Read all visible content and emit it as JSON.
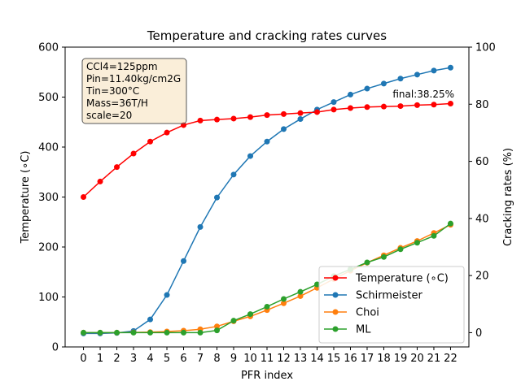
{
  "chart_data": {
    "type": "line",
    "title": "Temperature and cracking rates curves",
    "xlabel": "PFR index",
    "ylabel_left": "Temperature ($^\\circ$C)",
    "ylabel_left_display": "Temperature (∘C)",
    "ylabel_right": "Cracking rates (%)",
    "x": [
      0,
      1,
      2,
      3,
      4,
      5,
      6,
      7,
      8,
      9,
      10,
      11,
      12,
      13,
      14,
      15,
      16,
      17,
      18,
      19,
      20,
      21,
      22
    ],
    "ylim_left": [
      0,
      600
    ],
    "ylim_right": [
      -5,
      100
    ],
    "yticks_left": [
      0,
      100,
      200,
      300,
      400,
      500,
      600
    ],
    "yticks_right": [
      0,
      20,
      40,
      60,
      80,
      100
    ],
    "grid": false,
    "legend_position": "lower-right",
    "series": [
      {
        "name": "Temperature (∘C)",
        "axis": "left",
        "color": "#ff0000",
        "values": [
          300,
          331,
          360,
          387,
          411,
          429,
          444,
          453,
          455,
          457,
          460,
          464,
          466,
          468,
          470,
          475,
          478,
          480,
          481,
          482,
          484,
          485,
          487
        ]
      },
      {
        "name": "Schirmeister",
        "axis": "left",
        "color": "#1f77b4",
        "values": [
          27,
          27,
          28,
          32,
          55,
          104,
          172,
          240,
          299,
          345,
          382,
          411,
          436,
          456,
          475,
          490,
          505,
          517,
          527,
          537,
          545,
          553,
          559
        ]
      },
      {
        "name": "Choi",
        "axis": "right",
        "color": "#ff7f0e",
        "values": [
          0.0,
          0.0,
          0.0,
          0.1,
          0.2,
          0.4,
          0.7,
          1.2,
          2.2,
          4.0,
          5.7,
          7.9,
          10.3,
          12.8,
          15.7,
          18.8,
          21.7,
          24.5,
          27.1,
          29.7,
          32.1,
          34.9,
          37.8
        ]
      },
      {
        "name": "ML",
        "axis": "right",
        "color": "#2ca02c",
        "values": [
          0.0,
          0.0,
          0.0,
          0.0,
          0.0,
          0.0,
          0.0,
          0.0,
          0.8,
          4.2,
          6.5,
          9.1,
          11.8,
          14.3,
          16.9,
          19.8,
          22.2,
          24.6,
          26.5,
          29.2,
          31.5,
          33.9,
          38.2
        ]
      }
    ],
    "info_box": [
      "CCl4=125ppm",
      "Pin=11.40kg/cm2G",
      "Tin=300°C",
      "Mass=36T/H",
      "scale=20"
    ],
    "annotation": "final:38.25%"
  }
}
